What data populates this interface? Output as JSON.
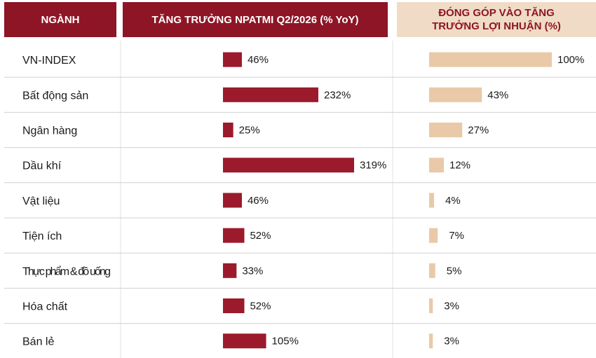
{
  "headers": {
    "sector": "NGÀNH",
    "growth": "TĂNG TRƯỞNG NPATMI Q2/2026 (% YoY)",
    "contribution": "ĐÓNG GÓP VÀO TĂNG TRƯỞNG LỢI NHUẬN (%)"
  },
  "colors": {
    "growth_bar": "#9b1a2c",
    "contribution_bar": "#e9c9a8",
    "row_divider": "#d0d0d0",
    "column_divider": "#e2e2e2"
  },
  "chart_data": {
    "type": "table",
    "categories": [
      "VN-INDEX",
      "Bất động sản",
      "Ngân hàng",
      "Dầu khí",
      "Vật liệu",
      "Tiện ích",
      "Thực phẩm & đồ uống",
      "Hóa chất",
      "Bán lẻ"
    ],
    "series": [
      {
        "name": "TĂNG TRƯỞNG NPATMI Q2/2026 (% YoY)",
        "values": [
          46,
          232,
          25,
          319,
          46,
          52,
          33,
          52,
          105
        ],
        "labels": [
          "46%",
          "232%",
          "25%",
          "319%",
          "46%",
          "52%",
          "33%",
          "52%",
          "105%"
        ]
      },
      {
        "name": "ĐÓNG GÓP VÀO TĂNG TRƯỞNG LỢI NHUẬN (%)",
        "values": [
          100,
          43,
          27,
          12,
          4,
          7,
          5,
          3,
          3
        ],
        "labels": [
          "100%",
          "43%",
          "27%",
          "12%",
          "4%",
          "7%",
          "5%",
          "3%",
          "3%"
        ]
      }
    ]
  }
}
